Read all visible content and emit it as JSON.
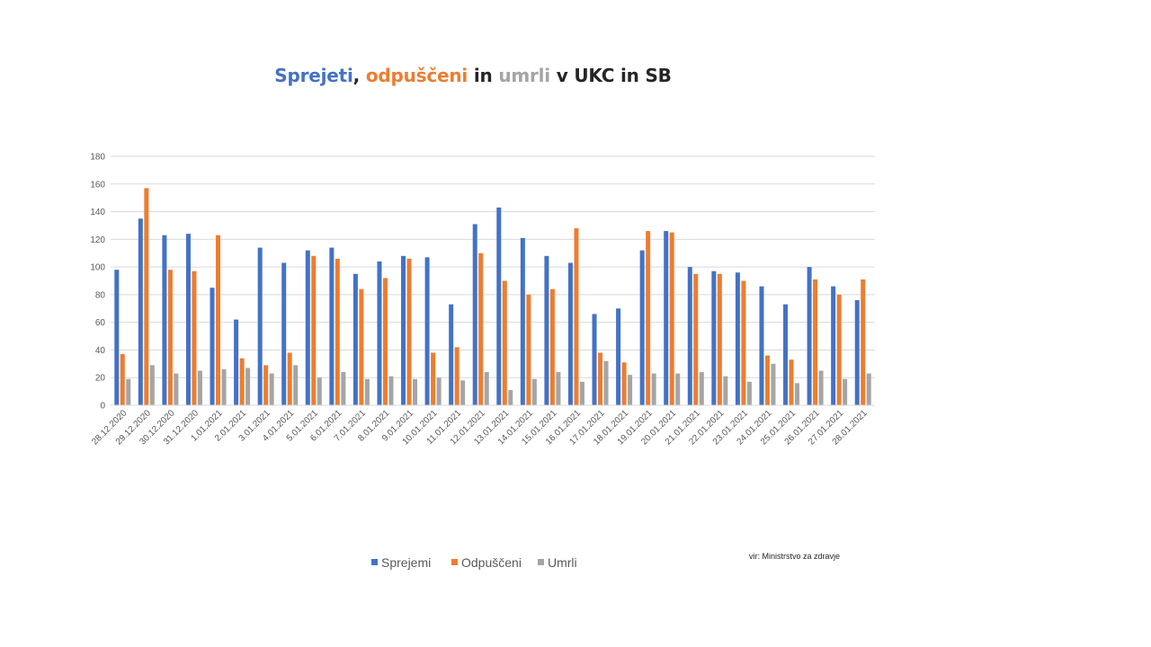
{
  "title": {
    "parts": [
      {
        "text": "Sprejeti",
        "color": "#4472C4"
      },
      {
        "text": ", ",
        "color": "#262626"
      },
      {
        "text": "odpuščeni",
        "color": "#ED7D31"
      },
      {
        "text": " in ",
        "color": "#262626"
      },
      {
        "text": "umrli",
        "color": "#A5A5A5"
      },
      {
        "text": " v UKC in SB",
        "color": "#262626"
      }
    ]
  },
  "source": "vir: Ministrstvo za zdravje",
  "chart_data": {
    "type": "bar",
    "title": "Sprejeti, odpuščeni in umrli v UKC in SB",
    "xlabel": "",
    "ylabel": "",
    "ylim": [
      0,
      180
    ],
    "yticks": [
      0,
      20,
      40,
      60,
      80,
      100,
      120,
      140,
      160,
      180
    ],
    "grid": true,
    "legend_position": "bottom",
    "categories": [
      "28.12.2020",
      "29.12.2020",
      "30.12.2020",
      "31.12.2020",
      "1.01.2021",
      "2.01.2021",
      "3.01.2021",
      "4.01.2021",
      "5.01.2021",
      "6.01.2021",
      "7.01.2021",
      "8.01.2021",
      "9.01.2021",
      "10.01.2021",
      "11.01.2021",
      "12.01.2021",
      "13.01.2021",
      "14.01.2021",
      "15.01.2021",
      "16.01.2021",
      "17.01.2021",
      "18.01.2021",
      "19.01.2021",
      "20.01.2021",
      "21.01.2021",
      "22.01.2021",
      "23.01.2021",
      "24.01.2021",
      "25.01.2021",
      "26.01.2021",
      "27.01.2021",
      "28.01.2021"
    ],
    "series": [
      {
        "name": "Sprejemi",
        "color": "#4472C4",
        "values": [
          98,
          135,
          123,
          124,
          85,
          62,
          114,
          103,
          112,
          114,
          95,
          104,
          108,
          107,
          73,
          131,
          143,
          121,
          108,
          103,
          66,
          70,
          112,
          126,
          100,
          97,
          96,
          86,
          73,
          100,
          86,
          76
        ]
      },
      {
        "name": "Odpuščeni",
        "color": "#ED7D31",
        "values": [
          37,
          157,
          98,
          97,
          123,
          34,
          29,
          38,
          108,
          106,
          84,
          92,
          106,
          38,
          42,
          110,
          90,
          80,
          84,
          128,
          38,
          31,
          126,
          125,
          95,
          95,
          90,
          36,
          33,
          91,
          80,
          91
        ]
      },
      {
        "name": "Umrli",
        "color": "#A5A5A5",
        "values": [
          19,
          29,
          23,
          25,
          26,
          27,
          23,
          29,
          20,
          24,
          19,
          21,
          19,
          20,
          18,
          24,
          11,
          19,
          24,
          17,
          32,
          22,
          23,
          23,
          24,
          21,
          17,
          30,
          16,
          25,
          19,
          23
        ]
      }
    ]
  }
}
